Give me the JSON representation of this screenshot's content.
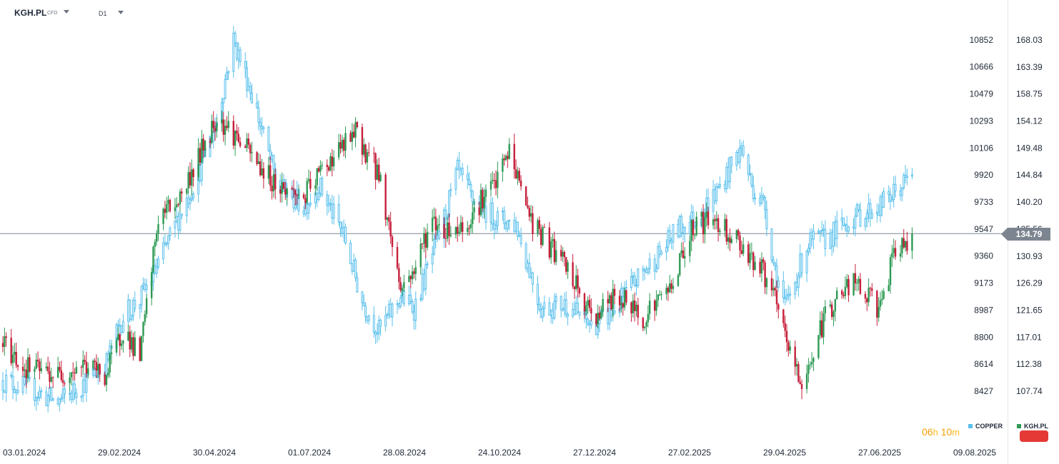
{
  "header": {
    "symbol": "KGH.PL",
    "symbol_tag": "CFD",
    "interval": "D1"
  },
  "current_price": "134.79",
  "countdown": {
    "hours": "06",
    "h_unit": "h",
    "minutes": "10",
    "m_unit": "m"
  },
  "legend": {
    "copper_label": "COPPER",
    "kgh_label": "KGH.PL"
  },
  "colors": {
    "copper": "#5ac0ec",
    "kgh_up": "#2e9a54",
    "kgh_down": "#c61f3a",
    "price_line": "#7d8590",
    "countdown": "#f59e0b",
    "badge": "#e53935"
  },
  "chart_data": {
    "type": "line",
    "title": "",
    "xlabel": "",
    "ylabel": "",
    "x_ticks": [
      "03.01.2024",
      "29.02.2024",
      "30.04.2024",
      "01.07.2024",
      "28.08.2024",
      "24.10.2024",
      "27.12.2024",
      "27.02.2025",
      "29.04.2025",
      "27.06.2025",
      "09.08.2025"
    ],
    "x_range": [
      "2024-01-03",
      "2025-08-09"
    ],
    "y_left": {
      "ticks": [
        "10852",
        "10666",
        "10479",
        "10293",
        "10106",
        "9920",
        "9733",
        "9547",
        "9360",
        "9173",
        "8987",
        "8800",
        "8614",
        "8427"
      ],
      "range": [
        8427,
        10852
      ]
    },
    "y_right": {
      "ticks": [
        "168.03",
        "163.39",
        "158.75",
        "154.12",
        "149.48",
        "144.84",
        "140.20",
        "135.56",
        "130.93",
        "126.29",
        "121.65",
        "117.01",
        "112.38",
        "107.74"
      ],
      "range": [
        107.74,
        168.03
      ]
    },
    "series": [
      {
        "name": "COPPER",
        "axis": "left",
        "x": [
          "2024-01-03",
          "2024-01-20",
          "2024-02-05",
          "2024-02-20",
          "2024-03-05",
          "2024-03-15",
          "2024-03-25",
          "2024-04-05",
          "2024-04-18",
          "2024-04-30",
          "2024-05-10",
          "2024-05-20",
          "2024-05-31",
          "2024-06-15",
          "2024-07-01",
          "2024-07-10",
          "2024-07-25",
          "2024-08-05",
          "2024-08-15",
          "2024-08-28",
          "2024-09-05",
          "2024-09-20",
          "2024-10-01",
          "2024-10-10",
          "2024-10-24",
          "2024-11-05",
          "2024-11-20",
          "2024-12-05",
          "2024-12-20",
          "2024-12-31",
          "2025-01-15",
          "2025-01-31",
          "2025-02-10",
          "2025-02-20",
          "2025-03-05",
          "2025-03-20",
          "2025-03-26",
          "2025-04-03",
          "2025-04-08",
          "2025-04-15",
          "2025-04-29",
          "2025-05-10",
          "2025-05-25",
          "2025-06-10",
          "2025-06-20",
          "2025-06-30"
        ],
        "values": [
          8500,
          8440,
          8350,
          8480,
          8620,
          8950,
          9060,
          9300,
          9650,
          9960,
          10300,
          10852,
          10480,
          9850,
          9700,
          9850,
          9500,
          9050,
          8840,
          9080,
          9000,
          9500,
          9940,
          9750,
          9620,
          9580,
          9000,
          9030,
          8880,
          8950,
          9180,
          9390,
          9550,
          9620,
          9800,
          10106,
          9850,
          9700,
          9320,
          9000,
          9450,
          9480,
          9620,
          9700,
          9800,
          9920
        ]
      },
      {
        "name": "KGH.PL",
        "axis": "right",
        "x": [
          "2024-01-03",
          "2024-01-15",
          "2024-02-05",
          "2024-02-20",
          "2024-03-05",
          "2024-03-15",
          "2024-03-25",
          "2024-04-05",
          "2024-04-18",
          "2024-04-30",
          "2024-05-10",
          "2024-05-20",
          "2024-05-31",
          "2024-06-15",
          "2024-07-01",
          "2024-07-15",
          "2024-08-01",
          "2024-08-15",
          "2024-08-28",
          "2024-09-05",
          "2024-09-15",
          "2024-09-25",
          "2024-10-05",
          "2024-10-15",
          "2024-10-24",
          "2024-11-01",
          "2024-11-15",
          "2024-12-05",
          "2024-12-20",
          "2025-01-05",
          "2025-01-20",
          "2025-02-05",
          "2025-02-20",
          "2025-03-05",
          "2025-03-20",
          "2025-04-01",
          "2025-04-07",
          "2025-04-15",
          "2025-04-25",
          "2025-05-10",
          "2025-05-25",
          "2025-06-10",
          "2025-06-20",
          "2025-06-30"
        ],
        "values": [
          116.0,
          112.0,
          110.5,
          112.3,
          110.5,
          118.5,
          113.5,
          137.5,
          141.0,
          148.5,
          155.0,
          152.0,
          148.0,
          143.0,
          141.0,
          147.0,
          152.0,
          145.0,
          125.5,
          128.5,
          137.0,
          135.5,
          136.0,
          140.5,
          143.5,
          149.0,
          136.5,
          129.0,
          120.5,
          124.0,
          120.5,
          125.5,
          136.5,
          137.0,
          133.0,
          128.5,
          125.0,
          117.0,
          108.5,
          121.5,
          126.5,
          122.0,
          131.5,
          134.79
        ]
      }
    ],
    "grid": false,
    "legend": "bottom-right"
  }
}
